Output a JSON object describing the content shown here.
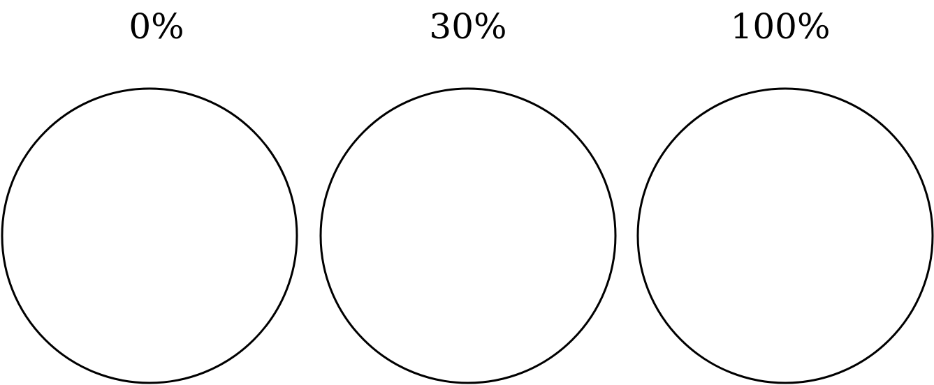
{
  "items": [
    {
      "label": "0%"
    },
    {
      "label": "30%"
    },
    {
      "label": "100%"
    }
  ],
  "colors": {
    "stroke": "#000000",
    "background": "#ffffff"
  }
}
